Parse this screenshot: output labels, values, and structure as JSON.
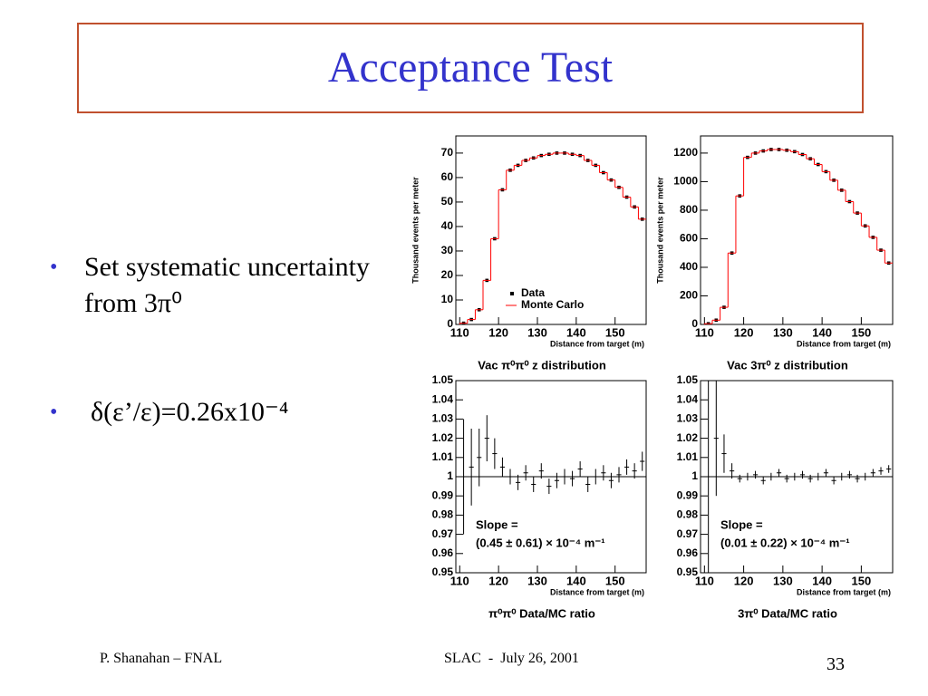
{
  "slide": {
    "title": "Acceptance Test",
    "bullets": [
      "Set systematic uncertainty from 3π⁰",
      "δ(ε’/ε)=0.26x10⁻⁴"
    ],
    "footer": {
      "left": "P. Shanahan – FNAL",
      "center": "SLAC  -  July 26, 2001",
      "right": "33"
    }
  },
  "chart_data": [
    {
      "type": "histogram",
      "title": "Vac  π⁰π⁰ z distribution",
      "x_label": "Distance from target (m)",
      "y_label": "Thousand events per meter",
      "bins": [
        110,
        112,
        114,
        116,
        118,
        120,
        122,
        124,
        126,
        128,
        130,
        132,
        134,
        136,
        138,
        140,
        142,
        144,
        146,
        148,
        150,
        152,
        154,
        156,
        158
      ],
      "series": [
        {
          "name": "Data",
          "color": "#000000",
          "values": [
            0.5,
            2,
            6,
            18,
            35,
            55,
            63,
            65,
            67,
            68,
            69,
            69.5,
            70,
            70,
            69.5,
            69,
            67,
            65,
            62,
            59,
            56,
            52,
            48,
            43
          ]
        },
        {
          "name": "Monte Carlo",
          "color": "#ff0000",
          "values": [
            0.5,
            2,
            6,
            18,
            35,
            55,
            63,
            65,
            67,
            68,
            69,
            69.5,
            70,
            70,
            69.5,
            69,
            67,
            65,
            62,
            59,
            56,
            52,
            48,
            43
          ]
        }
      ],
      "xlim": [
        109,
        158
      ],
      "ylim": [
        0,
        77
      ],
      "xticks": [
        110,
        120,
        130,
        140,
        150
      ],
      "yticks": [
        0,
        10,
        20,
        30,
        40,
        50,
        60,
        70
      ],
      "legend": "lower right"
    },
    {
      "type": "histogram",
      "title": "Vac  3π⁰ z distribution",
      "x_label": "Distance from target (m)",
      "y_label": "Thousand events per meter",
      "bins": [
        110,
        112,
        114,
        116,
        118,
        120,
        122,
        124,
        126,
        128,
        130,
        132,
        134,
        136,
        138,
        140,
        142,
        144,
        146,
        148,
        150,
        152,
        154,
        156,
        158
      ],
      "series": [
        {
          "color": "#000000",
          "values": [
            5,
            30,
            120,
            500,
            900,
            1170,
            1200,
            1215,
            1225,
            1225,
            1220,
            1210,
            1190,
            1160,
            1120,
            1070,
            1010,
            940,
            860,
            780,
            690,
            610,
            520,
            430
          ]
        },
        {
          "color": "#ff0000",
          "values": [
            5,
            30,
            120,
            500,
            900,
            1170,
            1200,
            1215,
            1225,
            1225,
            1220,
            1210,
            1190,
            1160,
            1120,
            1070,
            1010,
            940,
            860,
            780,
            690,
            610,
            520,
            430
          ]
        }
      ],
      "xlim": [
        109,
        158
      ],
      "ylim": [
        0,
        1320
      ],
      "xticks": [
        110,
        120,
        130,
        140,
        150
      ],
      "yticks": [
        0,
        200,
        400,
        600,
        800,
        1000,
        1200
      ]
    },
    {
      "type": "errorbar",
      "title": "π⁰π⁰  Data/MC ratio",
      "x_label": "Distance from target (m)",
      "annotations": [
        "Slope =",
        "(0.45 ± 0.61) × 10⁻⁴ m⁻¹"
      ],
      "reference_line": 1,
      "x": [
        111,
        113,
        115,
        117,
        119,
        121,
        123,
        125,
        127,
        129,
        131,
        133,
        135,
        137,
        139,
        141,
        143,
        145,
        147,
        149,
        151,
        153,
        155,
        157
      ],
      "values": [
        1.0,
        1.005,
        1.01,
        1.02,
        1.012,
        1.005,
        1.0,
        0.997,
        1.002,
        0.996,
        1.003,
        0.995,
        0.998,
        1.0,
        0.999,
        1.004,
        0.996,
        1.0,
        1.002,
        0.998,
        1.001,
        1.005,
        1.003,
        1.008
      ],
      "errors": [
        0.03,
        0.02,
        0.015,
        0.012,
        0.008,
        0.005,
        0.004,
        0.004,
        0.004,
        0.004,
        0.004,
        0.004,
        0.004,
        0.004,
        0.004,
        0.004,
        0.004,
        0.004,
        0.004,
        0.004,
        0.004,
        0.004,
        0.004,
        0.005
      ],
      "xlim": [
        109,
        158
      ],
      "ylim": [
        0.95,
        1.05
      ],
      "xticks": [
        110,
        120,
        130,
        140,
        150
      ],
      "yticks": [
        0.95,
        0.96,
        0.97,
        0.98,
        0.99,
        1,
        1.01,
        1.02,
        1.03,
        1.04,
        1.05
      ]
    },
    {
      "type": "errorbar",
      "title": "3π⁰  Data/MC ratio",
      "x_label": "Distance from target (m)",
      "annotations": [
        "Slope =",
        "(0.01 ± 0.22) × 10⁻⁴ m⁻¹"
      ],
      "reference_line": 1,
      "x": [
        111,
        113,
        115,
        117,
        119,
        121,
        123,
        125,
        127,
        129,
        131,
        133,
        135,
        137,
        139,
        141,
        143,
        145,
        147,
        149,
        151,
        153,
        155,
        157
      ],
      "values": [
        1.0,
        1.02,
        1.012,
        1.003,
        0.999,
        1.0,
        1.001,
        0.998,
        1.0,
        1.002,
        0.999,
        1.0,
        1.001,
        0.999,
        1.0,
        1.002,
        0.998,
        1.0,
        1.001,
        0.999,
        1.0,
        1.002,
        1.003,
        1.004
      ],
      "errors": [
        0.05,
        0.03,
        0.01,
        0.004,
        0.002,
        0.002,
        0.002,
        0.002,
        0.002,
        0.002,
        0.002,
        0.002,
        0.002,
        0.002,
        0.002,
        0.002,
        0.002,
        0.002,
        0.002,
        0.002,
        0.002,
        0.002,
        0.002,
        0.002
      ],
      "xlim": [
        109,
        158
      ],
      "ylim": [
        0.95,
        1.05
      ],
      "xticks": [
        110,
        120,
        130,
        140,
        150
      ],
      "yticks": [
        0.95,
        0.96,
        0.97,
        0.98,
        0.99,
        1,
        1.01,
        1.02,
        1.03,
        1.04,
        1.05
      ]
    }
  ]
}
